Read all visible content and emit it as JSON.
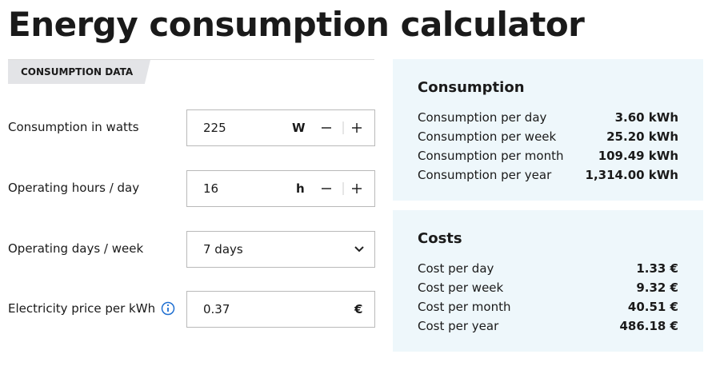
{
  "header": {
    "title": "Energy consumption calculator"
  },
  "tab": "CONSUMPTION DATA",
  "fields": [
    {
      "label": "Consumption in watts",
      "value": "225",
      "unit": "W"
    },
    {
      "label": "Operating hours / day",
      "value": "16",
      "unit": "h"
    },
    {
      "label": "Operating days / week",
      "value": "7 days"
    },
    {
      "label": "Electricity price per kWh",
      "value": "0.37",
      "unit": "€"
    }
  ],
  "consumption": {
    "title": "Consumption",
    "rows": [
      [
        "Consumption per day",
        "3.60 kWh"
      ],
      [
        "Consumption per week",
        "25.20 kWh"
      ],
      [
        "Consumption per month",
        "109.49 kWh"
      ],
      [
        "Consumption per year",
        "1,314.00 kWh"
      ]
    ]
  },
  "costs": {
    "title": "Costs",
    "rows": [
      [
        "Cost per day",
        "1.33 €"
      ],
      [
        "Cost per week",
        "9.32 €"
      ],
      [
        "Cost per month",
        "40.51 €"
      ],
      [
        "Cost per year",
        "486.18 €"
      ]
    ]
  }
}
